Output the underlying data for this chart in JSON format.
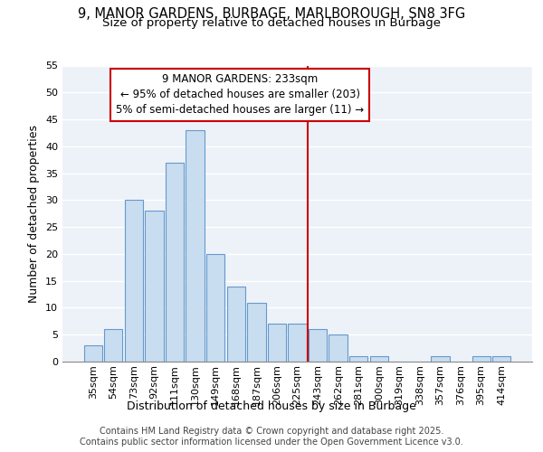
{
  "title1": "9, MANOR GARDENS, BURBAGE, MARLBOROUGH, SN8 3FG",
  "title2": "Size of property relative to detached houses in Burbage",
  "xlabel": "Distribution of detached houses by size in Burbage",
  "ylabel": "Number of detached properties",
  "categories": [
    "35sqm",
    "54sqm",
    "73sqm",
    "92sqm",
    "111sqm",
    "130sqm",
    "149sqm",
    "168sqm",
    "187sqm",
    "206sqm",
    "225sqm",
    "243sqm",
    "262sqm",
    "281sqm",
    "300sqm",
    "319sqm",
    "338sqm",
    "357sqm",
    "376sqm",
    "395sqm",
    "414sqm"
  ],
  "values": [
    3,
    6,
    30,
    28,
    37,
    43,
    20,
    14,
    11,
    7,
    7,
    6,
    5,
    1,
    1,
    0,
    0,
    1,
    0,
    1,
    1
  ],
  "bar_color": "#c8ddf0",
  "bar_edge_color": "#6699cc",
  "vline_x": 10.5,
  "annotation_line1": "9 MANOR GARDENS: 233sqm",
  "annotation_line2": "← 95% of detached houses are smaller (203)",
  "annotation_line3": "5% of semi-detached houses are larger (11) →",
  "annotation_box_color": "#cc0000",
  "background_color": "#edf2f9",
  "grid_color": "#ffffff",
  "ylim": [
    0,
    55
  ],
  "yticks": [
    0,
    5,
    10,
    15,
    20,
    25,
    30,
    35,
    40,
    45,
    50,
    55
  ],
  "footer_line1": "Contains HM Land Registry data © Crown copyright and database right 2025.",
  "footer_line2": "Contains public sector information licensed under the Open Government Licence v3.0.",
  "title_fontsize": 10.5,
  "subtitle_fontsize": 9.5,
  "axis_label_fontsize": 9,
  "tick_fontsize": 8,
  "annotation_fontsize": 8.5,
  "footer_fontsize": 7
}
